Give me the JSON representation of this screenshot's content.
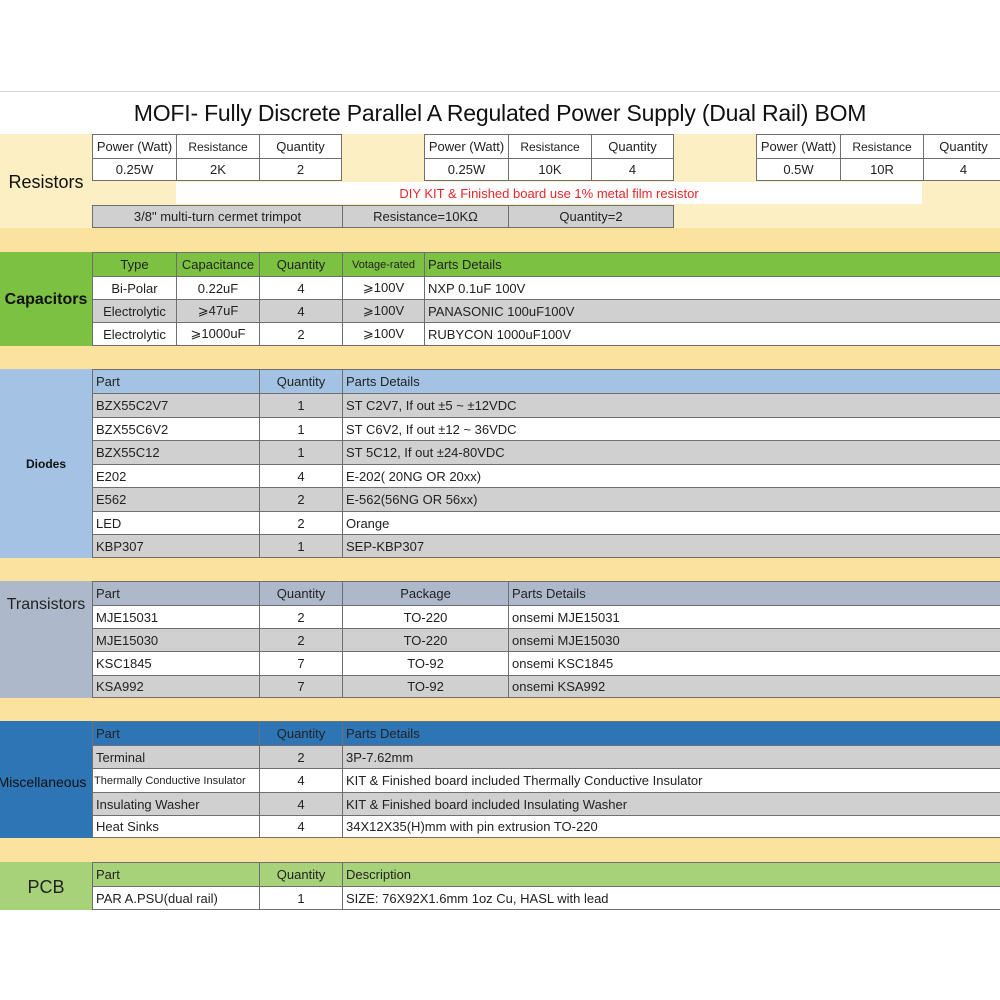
{
  "title": "MOFI- Fully Discrete Parallel A Regulated Power Supply (Dual Rail)  BOM",
  "colors": {
    "resistors_band": "#fcefc3",
    "resistors_row": "#fbe39f",
    "capacitors_band": "#7cc142",
    "diodes_band": "#a4c3e4",
    "transistors_band": "#adb9ca",
    "misc_band": "#2e75b6",
    "pcb_band": "#a8d27a",
    "gray_row": "#d0d0d0",
    "light_gray_row": "#e1e1e1",
    "note_red": "#e8262a"
  },
  "resistors": {
    "label": "Resistors",
    "groups": [
      {
        "headers": [
          "Power (Watt)",
          "Resistance",
          "Quantity"
        ],
        "values": [
          "0.25W",
          "2K",
          "2"
        ]
      },
      {
        "headers": [
          "Power (Watt)",
          "Resistance",
          "Quantity"
        ],
        "values": [
          "0.25W",
          "10K",
          "4"
        ]
      },
      {
        "headers": [
          "Power (Watt)",
          "Resistance",
          "Quantity"
        ],
        "values": [
          "0.5W",
          "10R",
          "4"
        ]
      }
    ],
    "note": "DIY KIT & Finished board use 1% metal film resistor",
    "trimpot": [
      "3/8\" multi-turn cermet trimpot",
      "Resistance=10KΩ",
      "Quantity=2"
    ]
  },
  "capacitors": {
    "label": "Capacitors",
    "headers": [
      "Type",
      "Capacitance",
      "Quantity",
      "Votage-rated",
      "Parts Details"
    ],
    "rows": [
      [
        "Bi-Polar",
        "0.22uF",
        "4",
        "⩾100V",
        "NXP 0.1uF 100V"
      ],
      [
        "Electrolytic",
        "⩾47uF",
        "4",
        "⩾100V",
        "PANASONIC 100uF100V"
      ],
      [
        "Electrolytic",
        "⩾1000uF",
        "2",
        "⩾100V",
        "RUBYCON  1000uF100V"
      ]
    ]
  },
  "diodes": {
    "label": "Diodes",
    "headers": [
      "Part",
      "Quantity",
      "Parts Details"
    ],
    "rows": [
      [
        "BZX55C2V7",
        "1",
        "ST C2V7,   If out ±5 ~ ±12VDC"
      ],
      [
        "BZX55C6V2",
        "1",
        "ST C6V2,   If out ±12 ~ 36VDC"
      ],
      [
        "BZX55C12",
        "1",
        "ST 5C12,   If out ±24-80VDC"
      ],
      [
        "E202",
        "4",
        "E-202( 20NG OR 20xx)"
      ],
      [
        "E562",
        "2",
        "E-562(56NG OR 56xx)"
      ],
      [
        "LED",
        "2",
        "Orange"
      ],
      [
        "KBP307",
        "1",
        "SEP-KBP307"
      ]
    ]
  },
  "transistors": {
    "label": "Transistors",
    "headers": [
      "Part",
      "Quantity",
      "Package",
      "Parts Details"
    ],
    "rows": [
      [
        "MJE15031",
        "2",
        "TO-220",
        "onsemi MJE15031"
      ],
      [
        "MJE15030",
        "2",
        "TO-220",
        "onsemi MJE15030"
      ],
      [
        "KSC1845",
        "7",
        "TO-92",
        "onsemi  KSC1845"
      ],
      [
        "KSA992",
        "7",
        "TO-92",
        "onsemi KSA992"
      ]
    ]
  },
  "misc": {
    "label": "Miscellaneous",
    "headers": [
      "Part",
      "Quantity",
      "Parts Details"
    ],
    "rows": [
      [
        "Terminal",
        "2",
        "3P-7.62mm"
      ],
      [
        "Thermally Conductive Insulator",
        "4",
        "KIT & Finished board included Thermally Conductive Insulator"
      ],
      [
        "Insulating Washer",
        "4",
        "KIT & Finished board included Insulating Washer"
      ],
      [
        "Heat Sinks",
        "4",
        "34X12X35(H)mm with pin extrusion TO-220"
      ]
    ]
  },
  "pcb": {
    "label": "PCB",
    "headers": [
      "Part",
      "Quantity",
      "Description"
    ],
    "rows": [
      [
        "PAR A.PSU(dual rail)",
        "1",
        "SIZE:  76X92X1.6mm    1oz Cu, HASL with lead"
      ]
    ]
  }
}
